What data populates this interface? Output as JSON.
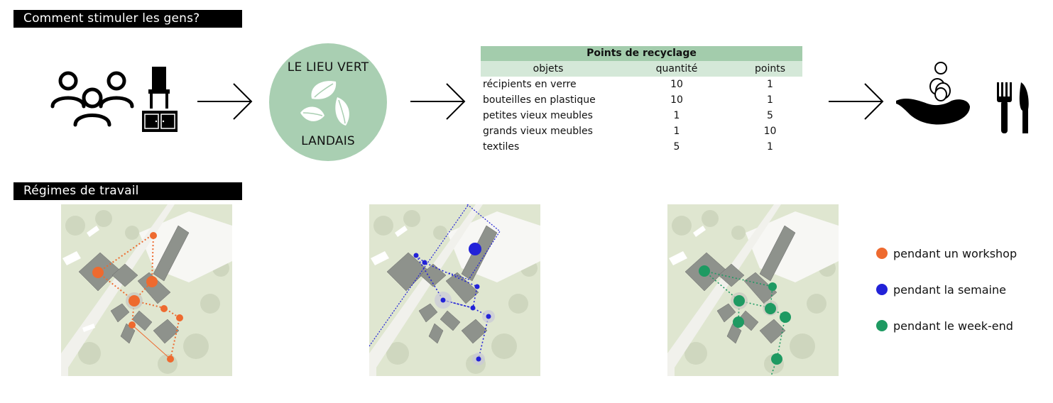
{
  "sections": {
    "stimulate_title": "Comment stimuler les gens?",
    "work_title": "Régimes de travail"
  },
  "circle": {
    "line1": "LE LIEU VERT",
    "line2": "LANDAIS",
    "color": "#a9cfb2"
  },
  "icons": [
    "people-icon",
    "chair-icon",
    "cabinet-icon",
    "arrow-right-icon",
    "recycle-leaf-icon",
    "coin-hand-icon",
    "cutlery-icon"
  ],
  "recycling_table": {
    "title": "Points de recyclage",
    "headers": [
      "objets",
      "quantité",
      "points"
    ],
    "rows": [
      [
        "récipients en verre",
        "10",
        "1"
      ],
      [
        "bouteilles en plastique",
        "10",
        "1"
      ],
      [
        "petites vieux meubles",
        "1",
        "5"
      ],
      [
        "grands vieux meubles",
        "1",
        "10"
      ],
      [
        "textiles",
        "5",
        "1"
      ]
    ]
  },
  "legend": [
    {
      "label": "pendant un workshop",
      "color": "#ee6a2f"
    },
    {
      "label": "pendant la semaine",
      "color": "#2222d8"
    },
    {
      "label": "pendant le week-end",
      "color": "#1e9a62"
    }
  ]
}
